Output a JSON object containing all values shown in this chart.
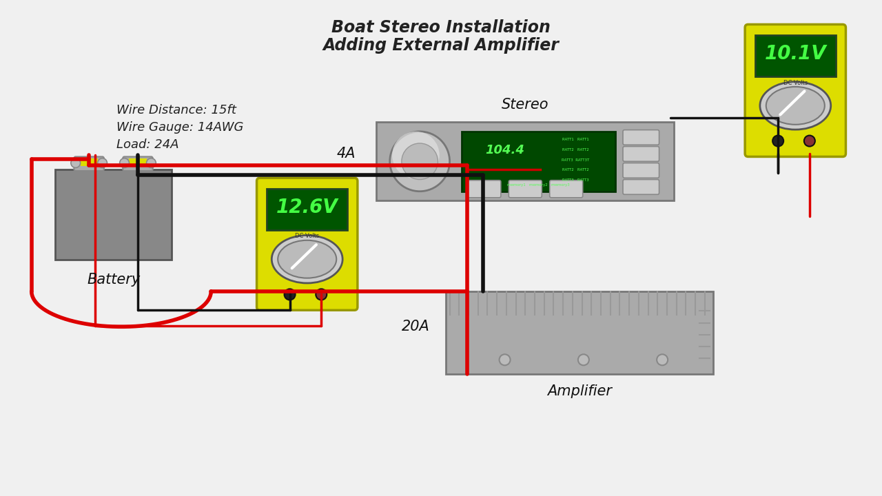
{
  "title_line1": "Boat Stereo Installation",
  "title_line2": "Adding External Amplifier",
  "bg_color": "#f0f0f0",
  "wire_info_1": "Wire Distance: 15ft",
  "wire_info_2": "Wire Gauge: 14AWG",
  "wire_info_3": "Load: 24A",
  "battery_label": "Battery",
  "stereo_label": "Stereo",
  "amplifier_label": "Amplifier",
  "meter1_voltage": "12.6V",
  "meter2_voltage": "10.1V",
  "current_stereo": "4A",
  "current_amp": "20A",
  "battery_color": "#888888",
  "stereo_color": "#aaaaaa",
  "amp_color": "#aaaaaa",
  "meter_body_color": "#dddd00",
  "wire_red": "#dd0000",
  "wire_black": "#111111",
  "terminal_color": "#999999"
}
